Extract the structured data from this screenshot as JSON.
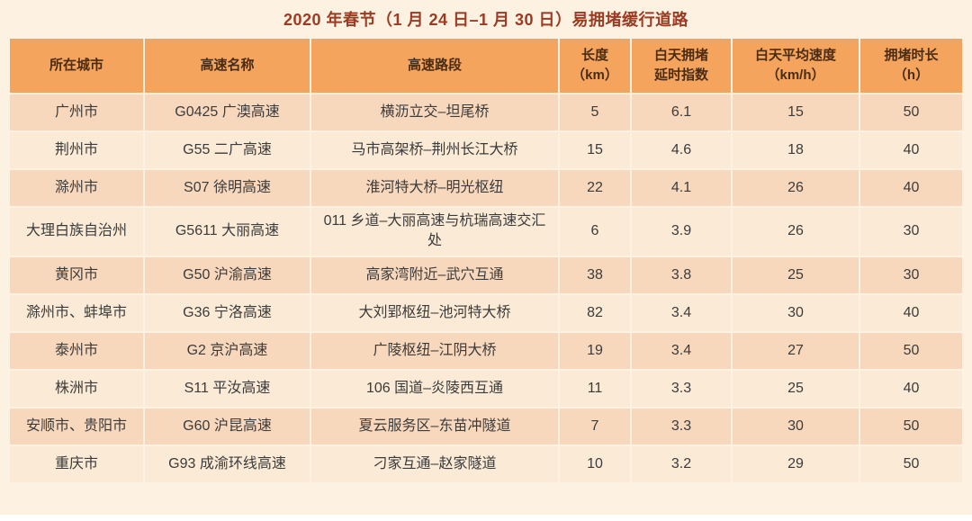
{
  "title": "2020 年春节（1 月 24 日–1 月 30 日）易拥堵缓行道路",
  "colors": {
    "background": "#FDF2E1",
    "header_bg": "#F4A45C",
    "row_odd": "#F8D8BD",
    "row_even": "#FBEBD6",
    "title_text": "#9C3A22",
    "header_text": "#4A2C14",
    "body_text": "#3B3B3B"
  },
  "display": {
    "header_lines": [
      "所在城市",
      "高速名称",
      "高速路段",
      "长度\n（km）",
      "白天拥堵\n延时指数",
      "白天平均速度\n（km/h）",
      "拥堵时长\n（h）"
    ]
  },
  "chart_data": {
    "type": "table",
    "title": "2020 年春节（1 月 24 日–1 月 30 日）易拥堵缓行道路",
    "columns": [
      "所在城市",
      "高速名称",
      "高速路段",
      "长度（km）",
      "白天拥堵延时指数",
      "白天平均速度（km/h）",
      "拥堵时长（h）"
    ],
    "rows": [
      [
        "广州市",
        "G0425 广澳高速",
        "横沥立交–坦尾桥",
        5,
        6.1,
        15,
        50
      ],
      [
        "荆州市",
        "G55 二广高速",
        "马市高架桥–荆州长江大桥",
        15,
        4.6,
        18,
        40
      ],
      [
        "滁州市",
        "S07 徐明高速",
        "淮河特大桥–明光枢纽",
        22,
        4.1,
        26,
        40
      ],
      [
        "大理白族自治州",
        "G5611 大丽高速",
        "011 乡道–大丽高速与杭瑞高速交汇处",
        6,
        3.9,
        26,
        30
      ],
      [
        "黄冈市",
        "G50 沪渝高速",
        "高家湾附近–武穴互通",
        38,
        3.8,
        25,
        30
      ],
      [
        "滁州市、蚌埠市",
        "G36 宁洛高速",
        "大刘郢枢纽–池河特大桥",
        82,
        3.4,
        30,
        40
      ],
      [
        "泰州市",
        "G2 京沪高速",
        "广陵枢纽–江阴大桥",
        19,
        3.4,
        27,
        50
      ],
      [
        "株洲市",
        "S11 平汝高速",
        "106 国道–炎陵西互通",
        11,
        3.3,
        25,
        40
      ],
      [
        "安顺市、贵阳市",
        "G60 沪昆高速",
        "夏云服务区–东苗冲隧道",
        7,
        3.3,
        30,
        50
      ],
      [
        "重庆市",
        "G93 成渝环线高速",
        "刁家互通–赵家隧道",
        10,
        3.2,
        29,
        50
      ]
    ]
  }
}
